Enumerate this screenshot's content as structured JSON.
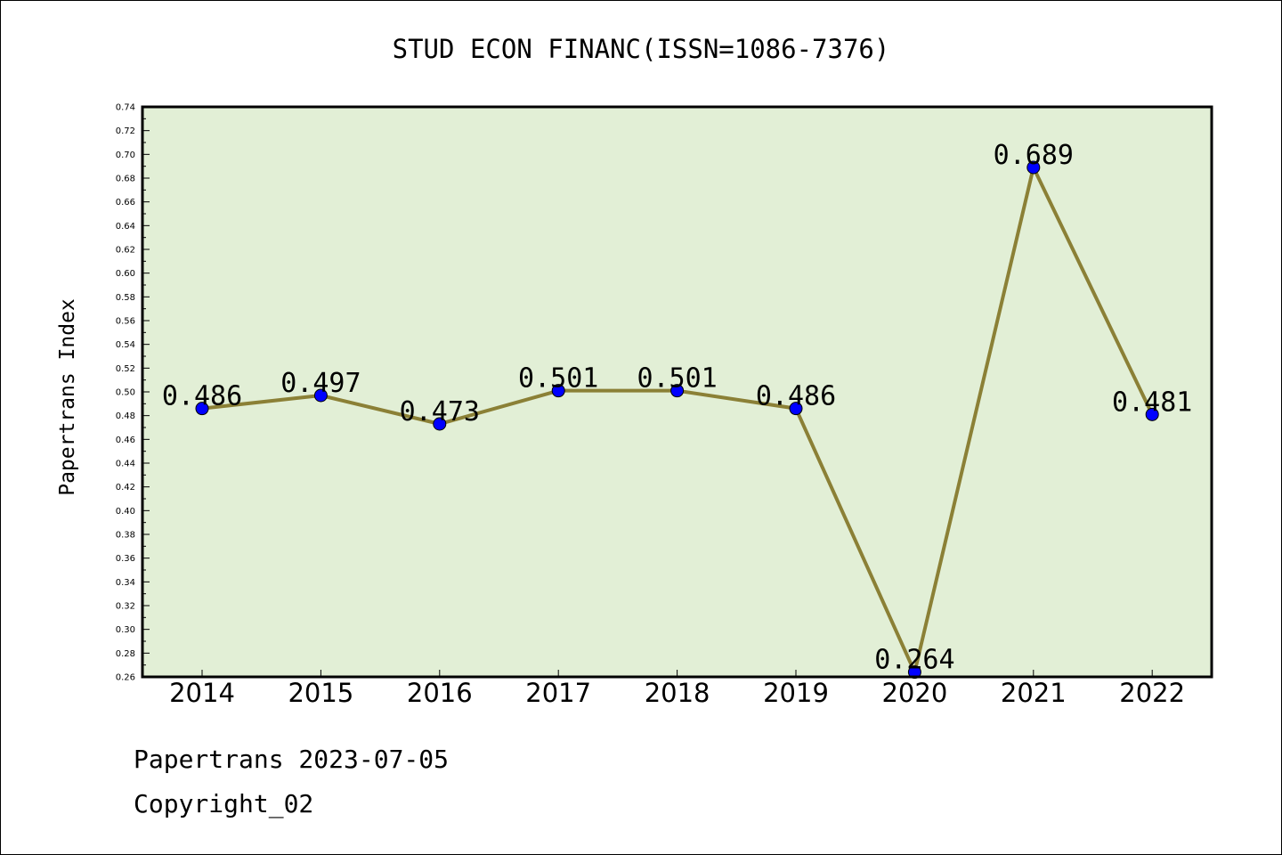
{
  "chart_data": {
    "type": "line",
    "title": "STUD ECON FINANC(ISSN=1086-7376)",
    "xlabel": "",
    "ylabel": "Papertrans Index",
    "categories": [
      "2014",
      "2015",
      "2016",
      "2017",
      "2018",
      "2019",
      "2020",
      "2021",
      "2022"
    ],
    "series": [
      {
        "values": [
          0.486,
          0.497,
          0.473,
          0.501,
          0.501,
          0.486,
          0.264,
          0.689,
          0.481
        ]
      }
    ],
    "data_labels": [
      "0.486",
      "0.497",
      "0.473",
      "0.501",
      "0.501",
      "0.486",
      "0.264",
      "0.689",
      "0.481"
    ],
    "ylim": [
      0.26,
      0.74
    ],
    "yticks": [
      "0.26",
      "0.28",
      "0.30",
      "0.32",
      "0.34",
      "0.36",
      "0.38",
      "0.40",
      "0.42",
      "0.44",
      "0.46",
      "0.48",
      "0.50",
      "0.52",
      "0.54",
      "0.56",
      "0.58",
      "0.60",
      "0.62",
      "0.64",
      "0.66",
      "0.68",
      "0.70",
      "0.72",
      "0.74"
    ],
    "grid": false,
    "colors": {
      "plot_background": "#e2efd6",
      "line": "#8b8036",
      "marker": "#0000ff"
    }
  },
  "footer": {
    "line1": "Papertrans 2023-07-05",
    "line2": "Copyright_02"
  }
}
